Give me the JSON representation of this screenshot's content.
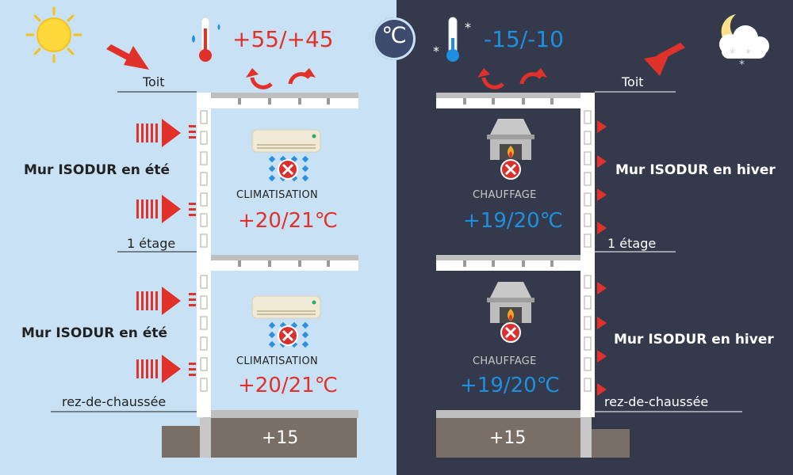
{
  "unit_badge": "℃",
  "colors": {
    "summer_bg": "#c9e1f4",
    "winter_bg": "#343a4c",
    "hot": "#e0322a",
    "cold": "#1e8fe0",
    "wall": "#ffffff",
    "slab": "#cfcfcf",
    "ground": "#7a6f66"
  },
  "summer": {
    "outside_temp": "+55/+45",
    "roof_label": "Toit",
    "wall_label_upper": "Mur ISODUR en été",
    "wall_label_lower": "Mur ISODUR en été",
    "floor_label": "1 étage",
    "ground_label": "rez-de-chaussée",
    "upper": {
      "system": "CLIMATISATION",
      "temp": "+20/21℃"
    },
    "lower": {
      "system": "CLIMATISATION",
      "temp": "+20/21℃"
    },
    "basement_temp": "+15",
    "icons": [
      "sun-icon",
      "thermometer-hot-icon",
      "air-conditioner-icon"
    ]
  },
  "winter": {
    "outside_temp": "-15/-10",
    "roof_label": "Toit",
    "wall_label_upper": "Mur ISODUR en hiver",
    "wall_label_lower": "Mur ISODUR en hiver",
    "floor_label": "1 étage",
    "ground_label": "rez-de-chaussée",
    "upper": {
      "system": "CHAUFFAGE",
      "temp": "+19/20℃"
    },
    "lower": {
      "system": "CHAUFFAGE",
      "temp": "+19/20℃"
    },
    "basement_temp": "+15",
    "icons": [
      "moon-cloud-snow-icon",
      "thermometer-cold-icon",
      "fireplace-icon"
    ]
  }
}
